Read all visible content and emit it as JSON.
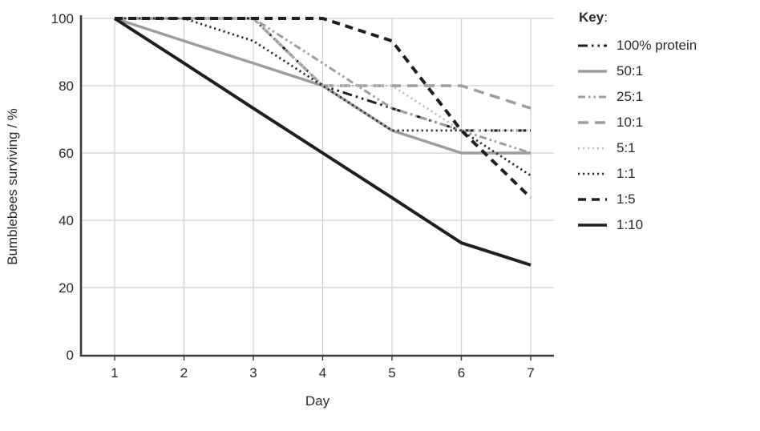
{
  "key": {
    "title": "Key",
    "colon": ":"
  },
  "colors": {
    "axis": "#3b3b3b",
    "grid": "#cfcfcf",
    "text": "#2b2b2b",
    "black_series": "#1f1f1f",
    "gray_series": "#9d9d9d",
    "light_gray_series": "#bdbdbd"
  },
  "chart_data": {
    "type": "line",
    "title": "",
    "xlabel": "Day",
    "ylabel": "Bumblebees surviving / %",
    "x": [
      1,
      2,
      3,
      4,
      5,
      6,
      7
    ],
    "xlim": [
      1,
      7
    ],
    "ylim": [
      0,
      100
    ],
    "yticks": [
      0,
      20,
      40,
      60,
      80,
      100
    ],
    "grid": true,
    "legend_position": "right",
    "legend_title": "Key:",
    "series": [
      {
        "name": "100% protein",
        "style": "dash-dot",
        "color": "#1f1f1f",
        "width": 3,
        "values": [
          100,
          100,
          100,
          80,
          73.3,
          66.7,
          66.7
        ]
      },
      {
        "name": "50:1",
        "style": "solid",
        "color": "#9d9d9d",
        "width": 3.5,
        "values": [
          100,
          93.3,
          86.7,
          80,
          66.7,
          60,
          60
        ]
      },
      {
        "name": "25:1",
        "style": "dash-dot-dot",
        "color": "#9d9d9d",
        "width": 3,
        "values": [
          100,
          100,
          100,
          86.7,
          73.3,
          66.7,
          60
        ]
      },
      {
        "name": "10:1",
        "style": "dashed",
        "color": "#9d9d9d",
        "width": 3.5,
        "values": [
          100,
          100,
          100,
          80,
          80,
          80,
          73.3
        ]
      },
      {
        "name": "5:1",
        "style": "dotted",
        "color": "#bdbdbd",
        "width": 2.6,
        "values": [
          100,
          100,
          100,
          80,
          80,
          66.7,
          66.7
        ]
      },
      {
        "name": "1:1",
        "style": "dotted",
        "color": "#2e2e2e",
        "width": 2.8,
        "values": [
          100,
          100,
          93.3,
          80,
          66.7,
          66.7,
          53.3
        ]
      },
      {
        "name": "1:5",
        "style": "dashed-heavy",
        "color": "#1f1f1f",
        "width": 4,
        "values": [
          100,
          100,
          100,
          100,
          93.3,
          66.7,
          46.7
        ]
      },
      {
        "name": "1:10",
        "style": "solid",
        "color": "#1f1f1f",
        "width": 4,
        "values": [
          100,
          86.7,
          73.3,
          60,
          46.7,
          33.3,
          26.7
        ]
      }
    ]
  }
}
